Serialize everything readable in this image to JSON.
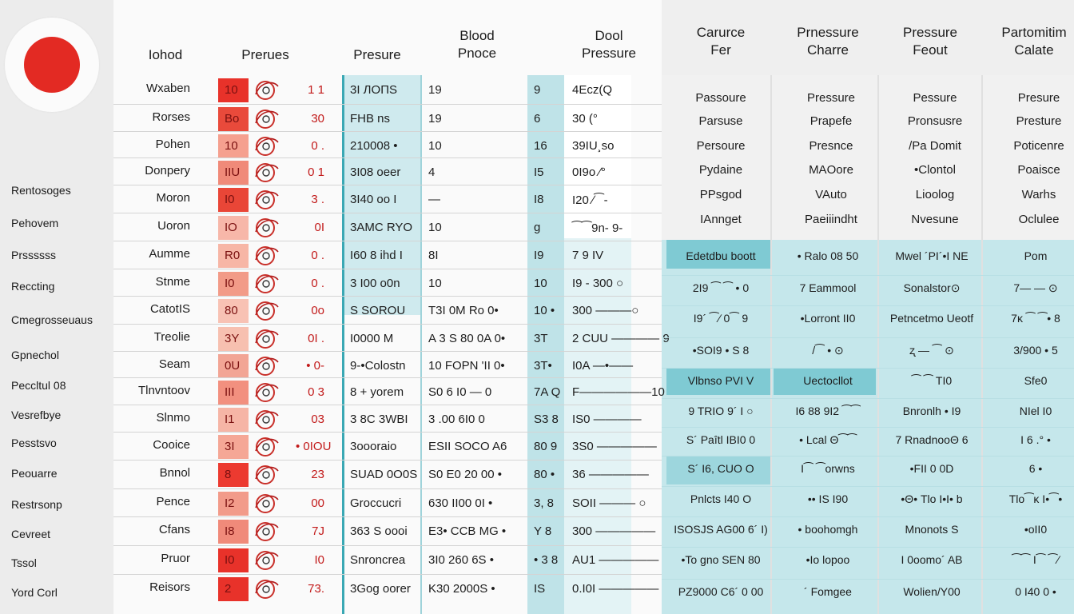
{
  "sidebar": {
    "items": [
      "Rentosoges",
      "Pehovem",
      "Prssssss",
      "Reccting",
      "Cmegrosseuaus",
      "Gpnechol",
      "Peccltul 08",
      "Vesrefbye",
      "Pesstsvo",
      "Peouarre",
      "Restrsonp",
      "Cevreet",
      "Tssol",
      "Yord Corl"
    ]
  },
  "headers": {
    "col1": "Iohod",
    "col2": "Prerues",
    "col3": "Presure",
    "col4": "Blood\nPnoce",
    "col5": "Dool\nPressure",
    "col6": "Carurce\nFer",
    "col7": "Prnessure\nCharre",
    "col8": "Pressure\nFeout",
    "col9": "Partomitim\nCalate"
  },
  "rows": [
    {
      "name": "Wxaben",
      "red": "10",
      "sm": "1 1",
      "c3": "3I ЛОПS",
      "c4": "19",
      "c5a": "9",
      "c5b": "4Ecz(Q"
    },
    {
      "name": "Rorses",
      "red": "Bo",
      "sm": "30",
      "c3": "FHB ns",
      "c4": "19",
      "c5a": "6",
      "c5b": "30 (°"
    },
    {
      "name": "Pohen",
      "red": "10",
      "sm": "0 .",
      "c3": "210008 •",
      "c4": "10",
      "c5a": "16",
      "c5b": "39IU¸so"
    },
    {
      "name": "Donpery",
      "red": "IIU",
      "sm": "0 1",
      "c3": "3I08 oeer",
      "c4": "4",
      "c5a": "I5",
      "c5b": "0I9o ∕°"
    },
    {
      "name": "Moron",
      "red": "I0",
      "sm": "3 .",
      "c3": "3I40 oo I",
      "c4": "―",
      "c5a": "I8",
      "c5b": "I20 ∕⁀-"
    },
    {
      "name": "Uoron",
      "red": "IO",
      "sm": "0I",
      "c3": "3AMC RYO",
      "c4": "10",
      "c5a": "ɡ",
      "c5b": "⁀⁀9n- 9-"
    },
    {
      "name": "Aumme",
      "red": "R0",
      "sm": "0 .",
      "c3": "I60 8 ihd I",
      "c4": "8I",
      "c5a": "I9",
      "c5b": "7 9 IV"
    },
    {
      "name": "Stnme",
      "red": "I0",
      "sm": "0 .",
      "c3": "3 I00 o0n",
      "c4": "10",
      "c5a": "10",
      "c5b": "I9 - 300 ○"
    },
    {
      "name": "CatotIS",
      "red": "80",
      "sm": "0o",
      "c3": "S SOROU",
      "c4": "T3I 0M Ro 0•",
      "c5a": "10 •",
      "c5b": "300 ———○"
    },
    {
      "name": "Treolie",
      "red": "3Y",
      "sm": "0I .",
      "c3": "I0000 M",
      "c4": "A 3 S 80 0A 0•",
      "c5a": "3T",
      "c5b": "2 CUU ———— 9"
    },
    {
      "name": "Seam",
      "red": "0U",
      "sm": "• 0-",
      "c3": "9-•Colostn",
      "c4": "10 FOPN 'II 0•",
      "c5a": "3T•",
      "c5b": "I0A —•——"
    },
    {
      "name": "Tlnvntoov",
      "red": "III",
      "sm": "0 3",
      "c3": "8 + yorem",
      "c4": "S0 6 I0 — 0",
      "c5a": "7A Q",
      "c5b": "F——————10"
    },
    {
      "name": "Slnmo",
      "red": "I1",
      "sm": "03",
      "c3": "3 8C 3WBI",
      "c4": "3 .00 6I0 0",
      "c5a": "S3 8",
      "c5b": "IS0 ————"
    },
    {
      "name": "Cooice",
      "red": "3I",
      "sm": "• 0IOU",
      "c3": "3oooraio",
      "c4": "ESII SOCO A6",
      "c5a": "80 9",
      "c5b": "3S0 —————"
    },
    {
      "name": "Bnnol",
      "red": "8",
      "sm": "23",
      "c3": "SUAD 0O0S",
      "c4": "S0 E0 20 00 •",
      "c5a": "80 •",
      "c5b": "36 —————"
    },
    {
      "name": "Pence",
      "red": "I2",
      "sm": "00",
      "c3": "Groccucri",
      "c4": "630 II00 0I •",
      "c5a": "3, 8",
      "c5b": "SOII ——— ○"
    },
    {
      "name": "Cfans",
      "red": "I8",
      "sm": "7J",
      "c3": "363 S oooi",
      "c4": "E3• CCB MG •",
      "c5a": "Y 8",
      "c5b": "300 —————"
    },
    {
      "name": "Pruor",
      "red": "I0",
      "sm": "I0",
      "c3": "Snroncrea",
      "c4": "3I0 260 6S •",
      "c5a": "• 3 8",
      "c5b": "AU1 —————"
    },
    {
      "name": "Reisors",
      "red": "2",
      "sm": "73.",
      "c3": "3Gog oorer",
      "c4": "K30 2000S •",
      "c5a": "IS",
      "c5b": "0.I0I —————"
    }
  ],
  "upper_right": {
    "col6": [
      "Passoure",
      "Parsuse",
      "Persoure",
      "Pydaine",
      "PPsgod",
      "IAnnget"
    ],
    "col7": [
      "Pressure",
      "Prapefe",
      "Presnce",
      "MAOore",
      "VAuto",
      "Paeiiindht"
    ],
    "col8": [
      "Pessure",
      "Pronsusre",
      "/Pa Domit",
      "•Clontol",
      "Lioolog",
      "Nvesune"
    ],
    "col9": [
      "Presure",
      "Presture",
      "Poticenre",
      "Poaisce",
      "Warhs",
      "Oclulee"
    ]
  },
  "lower_right": [
    [
      "Edetdbu  boott",
      "• Ralo 08 50",
      "Mwel  ´PI´•I NE",
      "Pom"
    ],
    [
      "2I9  ⁀  ⁀ • 0",
      "7  Eammool",
      "Sonalstor⊙",
      "7— — ⊙"
    ],
    [
      "I9´  ⁀∕ 0⁀ 9",
      "•Lorront II0",
      "Petncetmo Ueotf",
      "7ĸ ⁀ ⁀• 8"
    ],
    [
      "•SOI9  • S  8",
      "/⁀ •  ⊙",
      "ʐ  — ⁀  ⊙",
      "3/900 • 5"
    ],
    [
      "Vlbnso PVI V",
      "Uectocllot",
      "⁀ ⁀  TI0",
      "Sfe0"
    ],
    [
      "9 TRIO 9´ I  ○",
      "I6 88 9I2 ⁀⁀",
      "Bnronlh • I9",
      "NIel I0"
    ],
    [
      "S´ Paîtl IBI0  0",
      "• Lcal  Θ⁀⁀",
      "7 RnadnooΘ 6",
      "I 6 .° •"
    ],
    [
      "S´ I6, CUO  O",
      "I⁀  ⁀orwns",
      "•FII  0   0D",
      "6 •"
    ],
    [
      "Pnlcts I40 O",
      "•• IS I90",
      "•Θ• Tlo I•I• b",
      "Tlo⁀ĸ I•⁀•"
    ],
    [
      "ISOSJS AG00 6´ I)",
      "• boohomgh",
      "Mnonots  S",
      "•oII0"
    ],
    [
      "•To gno SEN 80",
      "•Io lopoo",
      "I 0oomo´ AB",
      "⁀⁀ I⁀ ⁀∕"
    ],
    [
      "PZ9000 C6´ 0 00",
      "´ Fomgee",
      "Wolien/Y00",
      "0 I40 0 •"
    ]
  ],
  "colors": {
    "red": "#e32a23",
    "teal": "#3aa8b4",
    "teal_light": "#bfe3e8",
    "teal_mid": "#8dcfd7"
  }
}
